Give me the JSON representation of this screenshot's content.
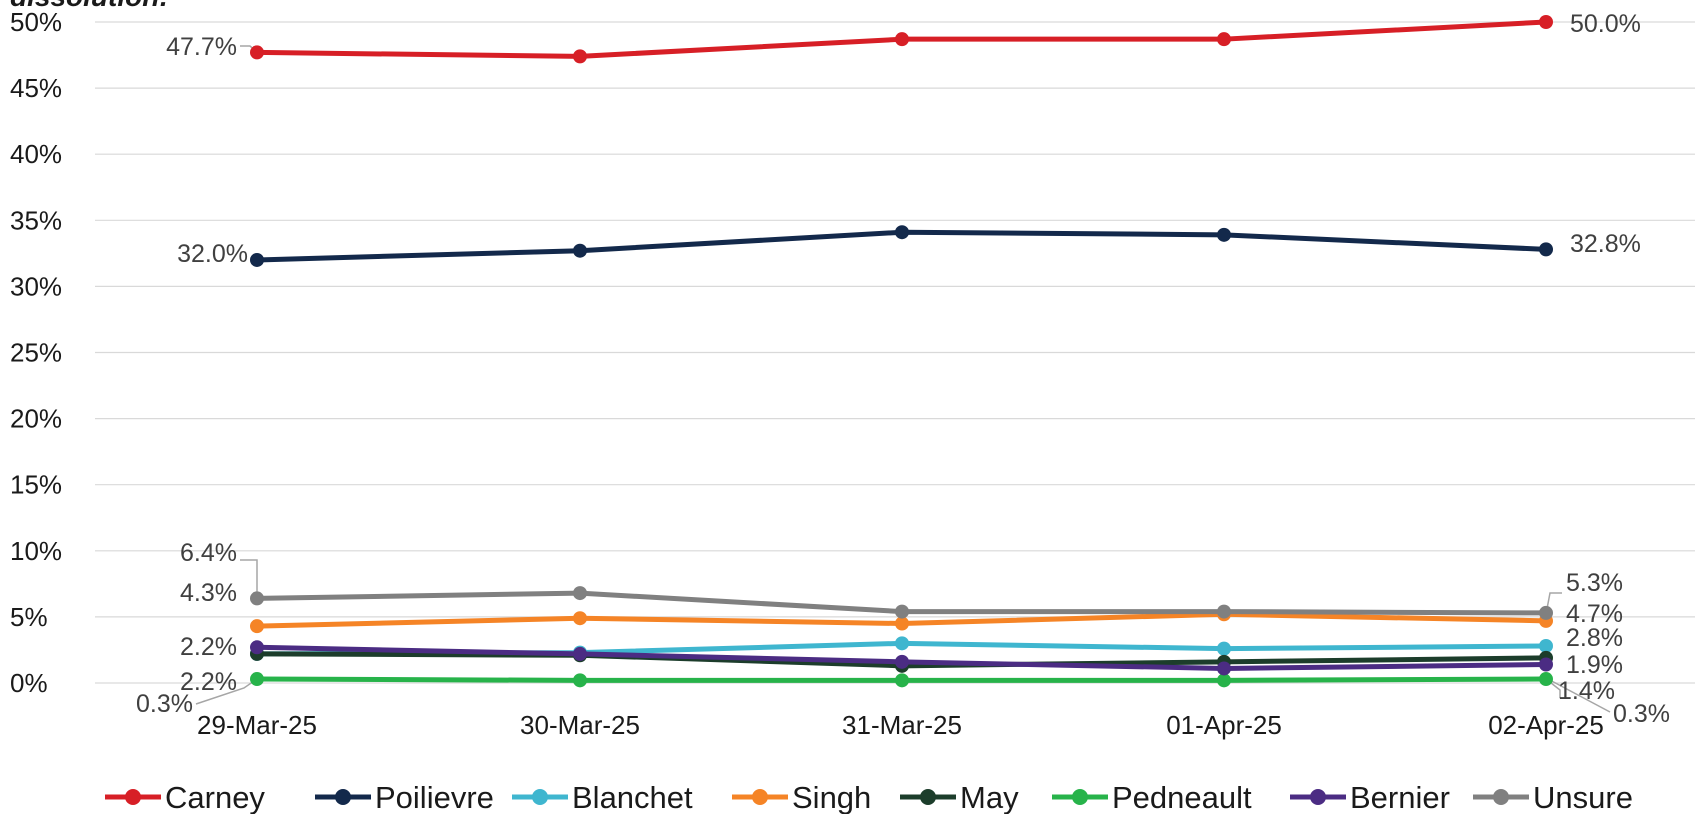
{
  "chart_data": {
    "type": "line",
    "title_fragment": "dissolution:",
    "categories": [
      "29-Mar-25",
      "30-Mar-25",
      "31-Mar-25",
      "01-Apr-25",
      "02-Apr-25"
    ],
    "y_ticks": [
      "0%",
      "5%",
      "10%",
      "15%",
      "20%",
      "25%",
      "30%",
      "35%",
      "40%",
      "45%",
      "50%"
    ],
    "ylim": [
      0,
      50
    ],
    "y_unit": "%",
    "grid": true,
    "legend_position": "bottom",
    "series": [
      {
        "name": "Carney",
        "color": "#d71f26",
        "values": [
          47.7,
          47.4,
          48.7,
          48.7,
          50.0
        ],
        "start_label": "47.7%",
        "end_label": "50.0%"
      },
      {
        "name": "Poilievre",
        "color": "#13294b",
        "values": [
          32.0,
          32.7,
          34.1,
          33.9,
          32.8
        ],
        "start_label": "32.0%",
        "end_label": "32.8%"
      },
      {
        "name": "Blanchet",
        "color": "#3fb6cf",
        "values": [
          2.2,
          2.3,
          3.0,
          2.6,
          2.8
        ],
        "start_label": "2.2%",
        "end_label": "2.8%"
      },
      {
        "name": "Singh",
        "color": "#f58426",
        "values": [
          4.3,
          4.9,
          4.5,
          5.2,
          4.7
        ],
        "start_label": "4.3%",
        "end_label": "4.7%"
      },
      {
        "name": "May",
        "color": "#1c3d2b",
        "values": [
          2.2,
          2.1,
          1.3,
          1.6,
          1.9
        ],
        "start_label": "2.2%",
        "end_label": "1.9%"
      },
      {
        "name": "Pedneault",
        "color": "#27b34a",
        "values": [
          0.3,
          0.2,
          0.2,
          0.2,
          0.3
        ],
        "start_label": "0.3%",
        "end_label": "0.3%"
      },
      {
        "name": "Bernier",
        "color": "#4b2c83",
        "values": [
          2.7,
          2.2,
          1.6,
          1.1,
          1.4
        ],
        "start_label": "",
        "end_label": "1.4%"
      },
      {
        "name": "Unsure",
        "color": "#808080",
        "values": [
          6.4,
          6.8,
          5.4,
          5.4,
          5.3
        ],
        "start_label": "6.4%",
        "end_label": "5.3%"
      }
    ]
  }
}
